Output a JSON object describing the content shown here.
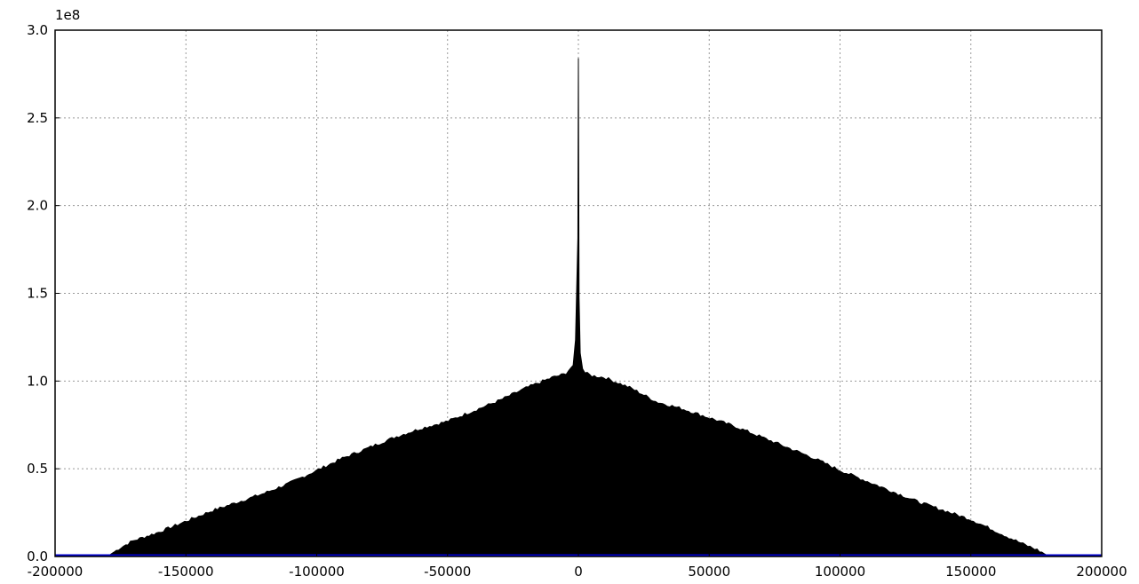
{
  "chart_data": {
    "type": "area",
    "title": "",
    "xlabel": "",
    "ylabel": "",
    "y_scale_label": "1e8",
    "xlim": [
      -200000,
      200000
    ],
    "ylim": [
      0,
      3.0
    ],
    "y_multiplier": 100000000,
    "grid": true,
    "fill_color": "#000000",
    "baseline_color": "#0000cc",
    "x_ticks": [
      -200000,
      -150000,
      -100000,
      -50000,
      0,
      50000,
      100000,
      150000,
      200000
    ],
    "x_tick_labels": [
      "-200000",
      "-150000",
      "-100000",
      "-50000",
      "0",
      "50000",
      "100000",
      "150000",
      "200000"
    ],
    "y_ticks": [
      0.0,
      0.5,
      1.0,
      1.5,
      2.0,
      2.5,
      3.0
    ],
    "y_tick_labels": [
      "0.0",
      "0.5",
      "1.0",
      "1.5",
      "2.0",
      "2.5",
      "3.0"
    ],
    "series": [
      {
        "x": [
          -200000,
          -180000,
          -175000,
          -170000,
          -160000,
          -150000,
          -140000,
          -130000,
          -120000,
          -110000,
          -100000,
          -90000,
          -80000,
          -70000,
          -60000,
          -50000,
          -40000,
          -30000,
          -20000,
          -10000,
          -5000,
          -2000,
          -1000,
          -500,
          -300,
          0,
          300,
          500,
          1000,
          2000,
          5000,
          10000,
          20000,
          30000,
          40000,
          50000,
          60000,
          70000,
          80000,
          90000,
          100000,
          110000,
          120000,
          130000,
          140000,
          150000,
          160000,
          170000,
          175000,
          180000,
          200000
        ],
        "values": [
          0,
          0,
          0.05,
          0.09,
          0.14,
          0.2,
          0.26,
          0.31,
          0.36,
          0.42,
          0.49,
          0.56,
          0.62,
          0.68,
          0.73,
          0.77,
          0.83,
          0.89,
          0.96,
          1.02,
          1.04,
          1.09,
          1.25,
          1.58,
          1.3,
          2.84,
          1.3,
          1.2,
          1.1,
          1.05,
          1.03,
          1.02,
          0.96,
          0.88,
          0.84,
          0.79,
          0.74,
          0.68,
          0.62,
          0.56,
          0.49,
          0.43,
          0.37,
          0.31,
          0.26,
          0.21,
          0.14,
          0.07,
          0.04,
          0,
          0
        ]
      }
    ]
  }
}
